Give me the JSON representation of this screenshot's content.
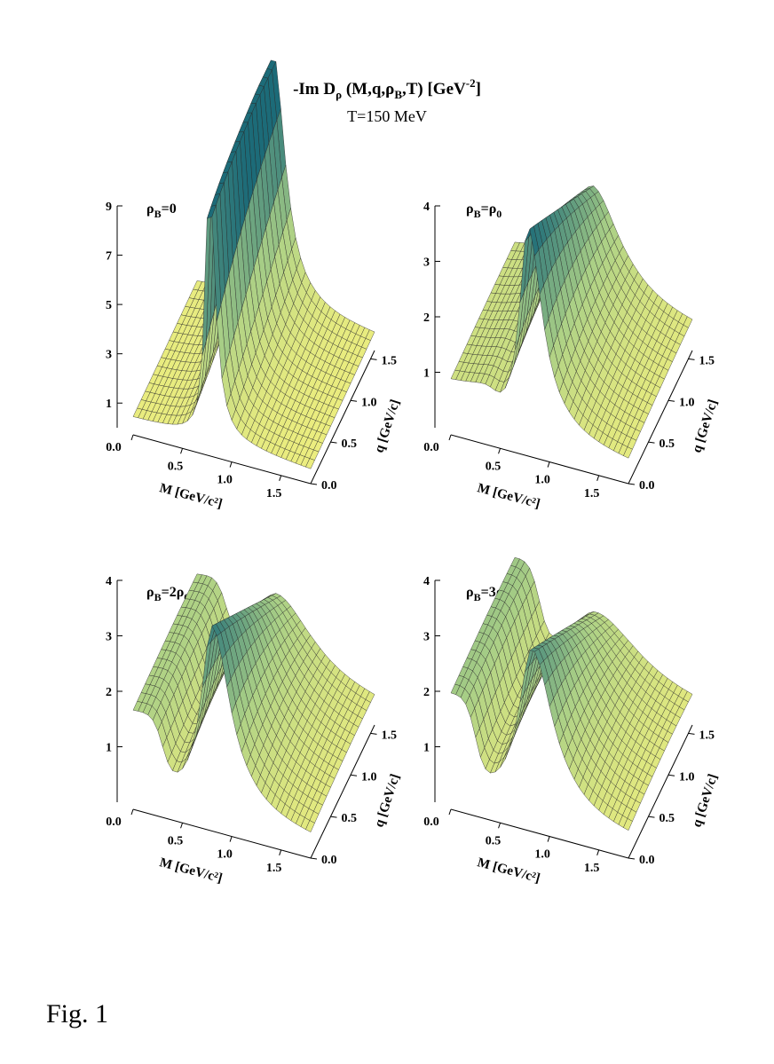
{
  "figure": {
    "title_main": "-Im D",
    "title_sub_rho": "ρ",
    "title_args_a": " (M,q,ρ",
    "title_args_sub": "B",
    "title_args_b": ",T)  [GeV",
    "title_unit_sup": "-2",
    "title_unit_end": "]",
    "subtitle": "T=150 MeV",
    "caption": "Fig. 1"
  },
  "chart_data": [
    {
      "type": "surface",
      "panel_label": {
        "base": "ρ",
        "sub": "B",
        "rest": "=0",
        "rest_sub": ""
      },
      "xlabel": "M [GeV/c²]",
      "ylabel": "q [GeV/c]",
      "x_ticks": [
        "0.0",
        "0.5",
        "1.0",
        "1.5"
      ],
      "y_ticks": [
        "0.0",
        "0.5",
        "1.0",
        "1.5"
      ],
      "z_ticks": [
        "1",
        "3",
        "5",
        "7",
        "9"
      ],
      "xlim": [
        0.0,
        1.8
      ],
      "ylim": [
        0.0,
        1.6
      ],
      "zlim": [
        0,
        9
      ],
      "z_ticks_num": [
        1,
        3,
        5,
        7,
        9
      ],
      "peak": {
        "mass": 0.77,
        "width_low": 0.07,
        "width_high": 0.11,
        "height": 10.5,
        "height_q_slope": 0.0,
        "low_mass_plateau": 0.0,
        "low_mass_edge": 0.5,
        "baseline": 0.7
      }
    },
    {
      "type": "surface",
      "panel_label": {
        "base": "ρ",
        "sub": "B",
        "rest": "=ρ",
        "rest_sub": "0"
      },
      "xlabel": "M [GeV/c²]",
      "ylabel": "q [GeV/c]",
      "x_ticks": [
        "0.0",
        "0.5",
        "1.0",
        "1.5"
      ],
      "y_ticks": [
        "0.0",
        "0.5",
        "1.0",
        "1.5"
      ],
      "z_ticks": [
        "1",
        "2",
        "3",
        "4"
      ],
      "xlim": [
        0.0,
        1.8
      ],
      "ylim": [
        0.0,
        1.6
      ],
      "zlim": [
        0,
        4
      ],
      "z_ticks_num": [
        1,
        2,
        3,
        4
      ],
      "peak": {
        "mass": 0.78,
        "width_low": 0.15,
        "width_high": 0.26,
        "height": 3.7,
        "height_q_slope": 0.45,
        "low_mass_plateau": 0.5,
        "low_mass_edge": 0.45,
        "baseline": 0.45
      }
    },
    {
      "type": "surface",
      "panel_label": {
        "base": "ρ",
        "sub": "B",
        "rest": "=2ρ",
        "rest_sub": "0"
      },
      "xlabel": "M [GeV/c²]",
      "ylabel": "q [GeV/c]",
      "x_ticks": [
        "0.0",
        "0.5",
        "1.0",
        "1.5"
      ],
      "y_ticks": [
        "0.0",
        "0.5",
        "1.0",
        "1.5"
      ],
      "z_ticks": [
        "1",
        "2",
        "3",
        "4"
      ],
      "xlim": [
        0.0,
        1.8
      ],
      "ylim": [
        0.0,
        1.6
      ],
      "zlim": [
        0,
        4
      ],
      "z_ticks_num": [
        1,
        2,
        3,
        4
      ],
      "peak": {
        "mass": 0.8,
        "width_low": 0.2,
        "width_high": 0.33,
        "height": 3.3,
        "height_q_slope": 0.55,
        "low_mass_plateau": 1.3,
        "low_mass_edge": 0.3,
        "baseline": 0.4
      }
    },
    {
      "type": "surface",
      "panel_label": {
        "base": "ρ",
        "sub": "B",
        "rest": "=3ρ",
        "rest_sub": "0"
      },
      "xlabel": "M [GeV/c²]",
      "ylabel": "q [GeV/c]",
      "x_ticks": [
        "0.0",
        "0.5",
        "1.0",
        "1.5"
      ],
      "y_ticks": [
        "0.0",
        "0.5",
        "1.0",
        "1.5"
      ],
      "z_ticks": [
        "1",
        "2",
        "3",
        "4"
      ],
      "xlim": [
        0.0,
        1.8
      ],
      "ylim": [
        0.0,
        1.6
      ],
      "zlim": [
        0,
        4
      ],
      "z_ticks_num": [
        1,
        2,
        3,
        4
      ],
      "peak": {
        "mass": 0.82,
        "width_low": 0.24,
        "width_high": 0.38,
        "height": 2.9,
        "height_q_slope": 0.6,
        "low_mass_plateau": 1.6,
        "low_mass_edge": 0.25,
        "baseline": 0.4
      }
    }
  ],
  "colors": {
    "low": "#f6f27e",
    "mid": "#a9cf86",
    "high": "#1c6b78",
    "mesh": "#2a2a2a"
  }
}
